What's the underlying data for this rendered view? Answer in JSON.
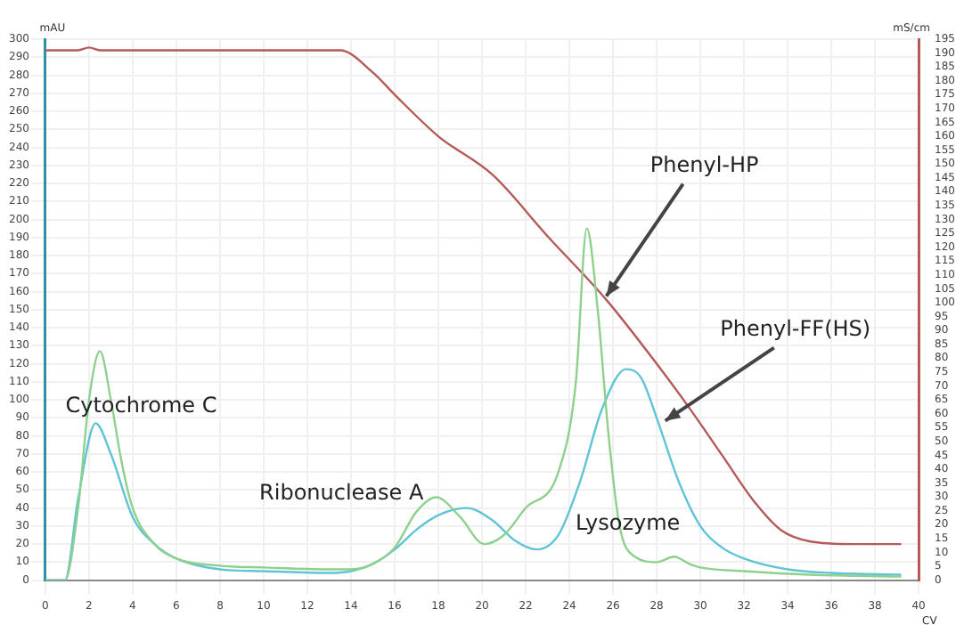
{
  "chart_data": {
    "type": "line",
    "xlabel": "CV",
    "ylabel": "mAU",
    "y2label": "mS/cm",
    "xlim": [
      0,
      40
    ],
    "xticks": [
      0,
      2,
      4,
      6,
      8,
      10,
      12,
      14,
      16,
      18,
      20,
      22,
      24,
      26,
      28,
      30,
      32,
      34,
      36,
      38,
      40
    ],
    "ylim": [
      0,
      300
    ],
    "yticks": [
      0,
      10,
      20,
      30,
      40,
      50,
      60,
      70,
      80,
      90,
      100,
      110,
      120,
      130,
      140,
      150,
      160,
      170,
      180,
      190,
      200,
      210,
      220,
      230,
      240,
      250,
      260,
      270,
      280,
      290,
      300
    ],
    "y2lim": [
      0,
      195
    ],
    "y2ticks": [
      0,
      5,
      10,
      15,
      20,
      25,
      30,
      35,
      40,
      45,
      50,
      55,
      60,
      65,
      70,
      75,
      80,
      85,
      90,
      95,
      100,
      105,
      110,
      115,
      120,
      125,
      130,
      135,
      140,
      145,
      150,
      155,
      160,
      165,
      170,
      175,
      180,
      185,
      190,
      195
    ],
    "grid": true,
    "legend": false,
    "marker": "none",
    "line_style": "solid",
    "series": [
      {
        "name": "Phenyl-HP",
        "color": "#8ed08e",
        "x": [
          0,
          0.9,
          1.5,
          2,
          2.5,
          3,
          3.5,
          4,
          5,
          6,
          8,
          10,
          13,
          14,
          15,
          16,
          17,
          17.9,
          19,
          20.1,
          21,
          22,
          23.5,
          24.3,
          24.8,
          25.3,
          25.8,
          26.3,
          27,
          28,
          28.8,
          29.5,
          30,
          32,
          35,
          39.2
        ],
        "values": [
          0,
          0,
          40,
          100,
          127,
          100,
          65,
          40,
          20,
          12,
          8,
          7,
          6,
          6,
          9,
          18,
          38,
          46,
          35,
          20,
          25,
          40,
          60,
          110,
          195,
          150,
          80,
          30,
          13,
          10,
          13,
          9,
          7,
          5,
          3,
          2
        ]
      },
      {
        "name": "Phenyl-FF(HS)",
        "color": "#5ec4d6",
        "x": [
          0,
          0.9,
          1.5,
          2.3,
          3,
          4,
          5,
          6,
          8,
          10,
          13,
          14,
          15,
          16,
          17,
          18,
          19.3,
          20.5,
          21.5,
          22.5,
          23.5,
          24.5,
          25.5,
          26.6,
          27.3,
          28,
          29,
          30,
          31,
          32,
          34,
          36,
          39.2
        ],
        "values": [
          0,
          0,
          45,
          87,
          70,
          35,
          20,
          12,
          6,
          5,
          4,
          5,
          9,
          17,
          28,
          36,
          40,
          33,
          22,
          17,
          25,
          55,
          95,
          117,
          112,
          90,
          55,
          30,
          18,
          12,
          6,
          4,
          3
        ]
      },
      {
        "axis": "y2",
        "color": "#b55a5a",
        "x": [
          0,
          1.5,
          2,
          2.5,
          3,
          13.5,
          15,
          16,
          18,
          20.5,
          23,
          25.7,
          28,
          29.5,
          31,
          32.5,
          33.7,
          35,
          37,
          39.2
        ],
        "values": [
          191,
          191,
          192,
          191,
          191,
          191,
          183,
          175,
          160,
          146,
          124,
          101,
          78,
          62,
          45,
          28,
          18,
          14,
          13,
          13
        ]
      }
    ],
    "annotations": [
      "Cytochrome C",
      "Ribonuclease A",
      "Lysozyme"
    ]
  }
}
